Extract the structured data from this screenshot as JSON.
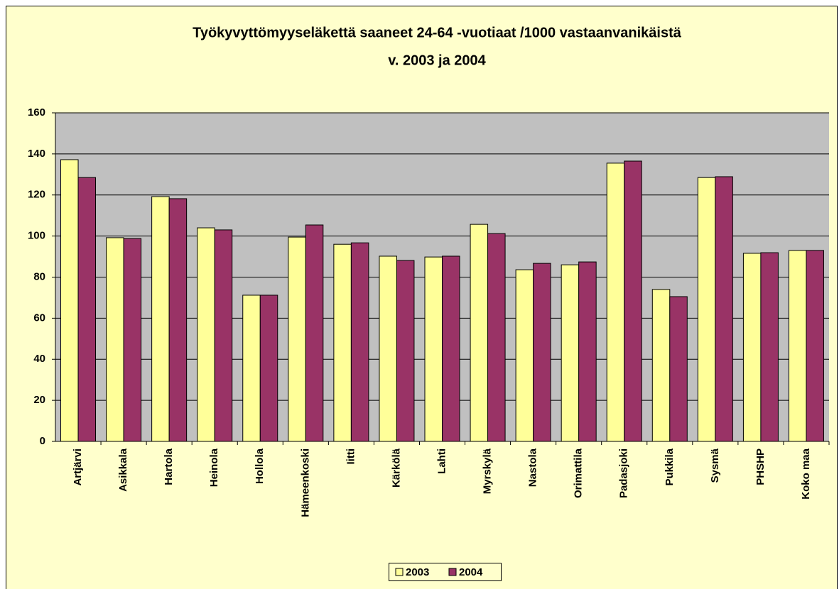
{
  "chart_data": {
    "type": "bar",
    "title": [
      "Työkyvyttömyyseläkettä saaneet 24-64 -vuotiaat /1000 vastaanvanikäistä",
      "v. 2003 ja 2004"
    ],
    "categories": [
      "Artjärvi",
      "Asikkala",
      "Hartola",
      "Heinola",
      "Hollola",
      "Hämeenkoski",
      "Iitti",
      "Kärkölä",
      "Lahti",
      "Myrskylä",
      "Nastola",
      "Orimattila",
      "Padasjoki",
      "Pukkila",
      "Sysmä",
      "PHSHP",
      "Koko maa"
    ],
    "series": [
      {
        "name": "2003",
        "color": "#ffff99",
        "values": [
          137.2,
          99.2,
          119.2,
          104,
          71.2,
          99.5,
          96,
          90.2,
          89.8,
          105.7,
          83.6,
          86,
          135.5,
          74,
          128.5,
          91.6,
          93
        ]
      },
      {
        "name": "2004",
        "color": "#993366",
        "values": [
          128.5,
          98.8,
          118.2,
          103,
          71.2,
          105.4,
          96.7,
          88.1,
          90.2,
          101.2,
          86.7,
          87.4,
          136.5,
          70.5,
          128.9,
          91.9,
          93
        ]
      }
    ],
    "ylim": [
      0,
      160
    ],
    "yticks": [
      0,
      20,
      40,
      60,
      80,
      100,
      120,
      140,
      160
    ],
    "grid": true,
    "legend": "bottom"
  }
}
